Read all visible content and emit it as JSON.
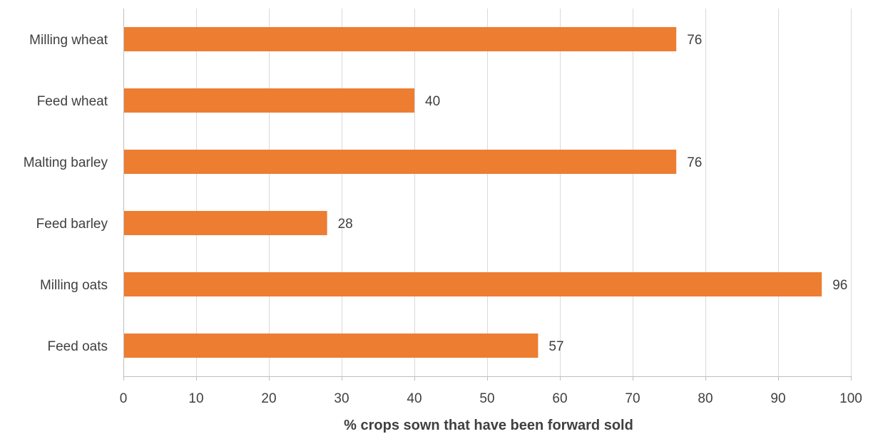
{
  "chart_data": {
    "type": "bar",
    "orientation": "horizontal",
    "categories": [
      "Milling wheat",
      "Feed wheat",
      "Malting barley",
      "Feed barley",
      "Milling oats",
      "Feed oats"
    ],
    "values": [
      76,
      40,
      76,
      28,
      96,
      57
    ],
    "data_labels": [
      "76",
      "40",
      "76",
      "28",
      "96",
      "57"
    ],
    "title": "",
    "xlabel": "% crops sown that have been forward sold",
    "ylabel": "",
    "xlim": [
      0,
      100
    ],
    "x_ticks": [
      0,
      10,
      20,
      30,
      40,
      50,
      60,
      70,
      80,
      90,
      100
    ],
    "x_tick_labels": [
      "0",
      "10",
      "20",
      "30",
      "40",
      "50",
      "60",
      "70",
      "80",
      "90",
      "100"
    ],
    "grid": true,
    "legend": "none",
    "bar_color": "#ED7D31",
    "grid_color": "#D9D9D9",
    "axis_color": "#BFBFBF",
    "text_color": "#404040"
  }
}
